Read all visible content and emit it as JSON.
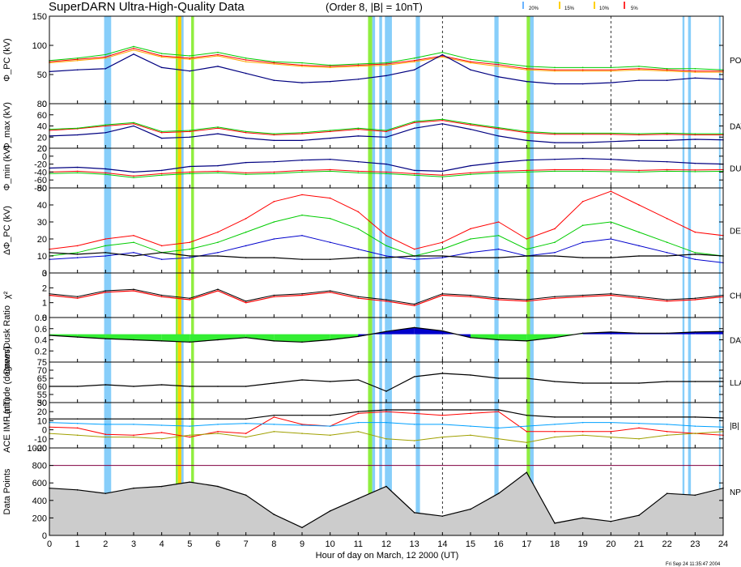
{
  "header": {
    "title": "SuperDARN Ultra-High-Quality Data",
    "subtitle": "(Order 8, |B| = 10nT)",
    "legend": [
      {
        "label": "20%",
        "color": "#6ab4ff"
      },
      {
        "label": "15%",
        "color": "#ffd000"
      },
      {
        "label": "10%",
        "color": "#ffd000"
      },
      {
        "label": "5%",
        "color": "#ff3030"
      }
    ],
    "footer_stamp": "Fri Sep 24 11:35:47 2004"
  },
  "chart_data": {
    "type": "line",
    "xlabel": "Hour of day on March, 12 2000 (UT)",
    "xlim": [
      0,
      24
    ],
    "x_ticks": [
      "0",
      "1",
      "2",
      "3",
      "4",
      "5",
      "6",
      "7",
      "8",
      "9",
      "10",
      "11",
      "12",
      "13",
      "14",
      "15",
      "16",
      "17",
      "18",
      "19",
      "20",
      "21",
      "22",
      "23",
      "24"
    ],
    "dashed_hours": [
      14,
      20
    ],
    "shaded_intervals": [
      {
        "start": 1.95,
        "end": 2.2,
        "color": "#87cefa"
      },
      {
        "start": 4.5,
        "end": 4.58,
        "color": "#90ee40"
      },
      {
        "start": 4.58,
        "end": 4.7,
        "color": "#ffd000"
      },
      {
        "start": 4.7,
        "end": 4.78,
        "color": "#87cefa"
      },
      {
        "start": 5.05,
        "end": 5.15,
        "color": "#90ee40"
      },
      {
        "start": 11.35,
        "end": 11.5,
        "color": "#90ee40"
      },
      {
        "start": 11.5,
        "end": 11.6,
        "color": "#87cefa"
      },
      {
        "start": 11.75,
        "end": 11.85,
        "color": "#87cefa"
      },
      {
        "start": 11.95,
        "end": 12.2,
        "color": "#87cefa"
      },
      {
        "start": 13.05,
        "end": 13.2,
        "color": "#87cefa"
      },
      {
        "start": 15.85,
        "end": 16.0,
        "color": "#87cefa"
      },
      {
        "start": 17.0,
        "end": 17.12,
        "color": "#90ee40"
      },
      {
        "start": 17.12,
        "end": 17.25,
        "color": "#87cefa"
      },
      {
        "start": 22.55,
        "end": 22.62,
        "color": "#87cefa"
      },
      {
        "start": 22.75,
        "end": 22.85,
        "color": "#87cefa"
      },
      {
        "start": 23.85,
        "end": 23.9,
        "color": "#87cefa"
      }
    ],
    "panels": [
      {
        "id": "phi_pc",
        "ylabel": "Φ_PC (kV)",
        "ylim": [
          0,
          150
        ],
        "yticks": [
          "0",
          "50",
          "100",
          "150"
        ],
        "right_label": "PO",
        "series": [
          {
            "color": "#ff0000",
            "values": [
              72,
              76,
              80,
              95,
              82,
              78,
              84,
              75,
              70,
              66,
              64,
              66,
              68,
              74,
              82,
              72,
              67,
              60,
              58,
              58,
              58,
              60,
              58,
              56,
              56
            ]
          },
          {
            "color": "#00cc00",
            "values": [
              74,
              78,
              84,
              98,
              86,
              82,
              88,
              78,
              72,
              70,
              66,
              68,
              70,
              78,
              88,
              76,
              70,
              64,
              62,
              62,
              62,
              64,
              60,
              60,
              58
            ]
          },
          {
            "color": "#ffa500",
            "values": [
              70,
              74,
              78,
              92,
              80,
              76,
              82,
              72,
              68,
              64,
              62,
              64,
              66,
              72,
              80,
              70,
              64,
              58,
              56,
              56,
              56,
              58,
              56,
              54,
              54
            ]
          },
          {
            "color": "#000080",
            "values": [
              55,
              58,
              60,
              85,
              62,
              56,
              64,
              52,
              40,
              36,
              38,
              42,
              48,
              58,
              84,
              58,
              46,
              38,
              34,
              34,
              36,
              40,
              40,
              44,
              42
            ]
          }
        ]
      },
      {
        "id": "phi_max",
        "ylabel": "Φ_max (kV)",
        "ylim": [
          0,
          80
        ],
        "yticks": [
          "0",
          "20",
          "40",
          "60",
          "80"
        ],
        "right_label": "DAY",
        "series": [
          {
            "color": "#ff0000",
            "values": [
              32,
              35,
              40,
              44,
              28,
              30,
              36,
              28,
              24,
              26,
              30,
              34,
              30,
              46,
              50,
              42,
              35,
              28,
              25,
              25,
              25,
              24,
              25,
              24,
              24
            ]
          },
          {
            "color": "#00cc00",
            "values": [
              34,
              36,
              42,
              46,
              30,
              32,
              38,
              30,
              26,
              28,
              32,
              36,
              32,
              48,
              52,
              44,
              37,
              30,
              27,
              27,
              27,
              26,
              27,
              26,
              26
            ]
          },
          {
            "color": "#000080",
            "values": [
              22,
              24,
              28,
              40,
              18,
              20,
              26,
              18,
              14,
              14,
              18,
              22,
              20,
              36,
              44,
              34,
              22,
              14,
              10,
              10,
              12,
              14,
              14,
              16,
              15
            ]
          }
        ]
      },
      {
        "id": "phi_min",
        "ylabel": "Φ_min (kV)",
        "ylim": [
          -80,
          20
        ],
        "yticks": [
          "-80",
          "-60",
          "-40",
          "-20",
          "0",
          "20"
        ],
        "right_label": "DU",
        "series": [
          {
            "color": "#ff0000",
            "values": [
              -40,
              -38,
              -42,
              -50,
              -44,
              -40,
              -38,
              -42,
              -40,
              -36,
              -34,
              -38,
              -40,
              -44,
              -48,
              -42,
              -38,
              -36,
              -34,
              -34,
              -35,
              -36,
              -34,
              -35,
              -34
            ]
          },
          {
            "color": "#00cc00",
            "values": [
              -44,
              -42,
              -46,
              -54,
              -48,
              -44,
              -42,
              -46,
              -44,
              -40,
              -38,
              -42,
              -44,
              -48,
              -52,
              -46,
              -42,
              -40,
              -38,
              -38,
              -39,
              -40,
              -38,
              -39,
              -38
            ]
          },
          {
            "color": "#000080",
            "values": [
              -30,
              -28,
              -32,
              -40,
              -36,
              -26,
              -24,
              -16,
              -14,
              -10,
              -8,
              -14,
              -20,
              -36,
              -38,
              -24,
              -16,
              -10,
              -8,
              -6,
              -8,
              -12,
              -14,
              -18,
              -20
            ]
          }
        ]
      },
      {
        "id": "delta_phi",
        "ylabel": "ΔΦ_PC (kV)",
        "ylim": [
          0,
          50
        ],
        "yticks": [
          "0",
          "10",
          "20",
          "30",
          "40",
          "50"
        ],
        "right_label": "DE",
        "series": [
          {
            "color": "#ff0000",
            "values": [
              14,
              16,
              20,
              22,
              16,
              18,
              24,
              32,
              42,
              46,
              44,
              36,
              22,
              14,
              18,
              26,
              30,
              20,
              26,
              42,
              48,
              40,
              32,
              24,
              22
            ]
          },
          {
            "color": "#00cc00",
            "values": [
              10,
              12,
              16,
              18,
              12,
              14,
              18,
              24,
              30,
              34,
              32,
              26,
              16,
              10,
              14,
              20,
              22,
              14,
              18,
              28,
              30,
              24,
              18,
              12,
              10
            ]
          },
          {
            "color": "#0000cc",
            "values": [
              8,
              9,
              10,
              12,
              8,
              9,
              12,
              16,
              20,
              22,
              18,
              14,
              10,
              8,
              9,
              12,
              14,
              10,
              12,
              18,
              20,
              16,
              12,
              8,
              6
            ]
          },
          {
            "color": "#000000",
            "values": [
              12,
              11,
              12,
              10,
              12,
              10,
              10,
              9,
              9,
              8,
              8,
              9,
              9,
              10,
              10,
              9,
              9,
              10,
              10,
              9,
              9,
              10,
              10,
              11,
              10
            ]
          }
        ]
      },
      {
        "id": "chi",
        "ylabel": "χ²",
        "ylim": [
          0,
          3
        ],
        "yticks": [
          "0",
          "1",
          "2",
          "3"
        ],
        "right_label": "CH",
        "series": [
          {
            "color": "#000000",
            "values": [
              1.6,
              1.4,
              1.8,
              1.9,
              1.5,
              1.3,
              1.9,
              1.1,
              1.5,
              1.6,
              1.8,
              1.4,
              1.2,
              0.9,
              1.6,
              1.5,
              1.3,
              1.2,
              1.4,
              1.5,
              1.6,
              1.4,
              1.2,
              1.3,
              1.5
            ]
          },
          {
            "color": "#ff0000",
            "values": [
              1.5,
              1.3,
              1.7,
              1.8,
              1.4,
              1.2,
              1.8,
              1.0,
              1.4,
              1.5,
              1.7,
              1.3,
              1.1,
              0.8,
              1.5,
              1.4,
              1.2,
              1.1,
              1.3,
              1.4,
              1.5,
              1.3,
              1.1,
              1.2,
              1.4
            ]
          }
        ]
      },
      {
        "id": "ratio",
        "ylabel": "Dawn/Dusk Ratio",
        "ylim": [
          0,
          0.8
        ],
        "yticks": [
          "0.2",
          "0.4",
          "0.6",
          "0.8"
        ],
        "right_label": "DAY",
        "baseline": 0.5,
        "series": [
          {
            "color": "#000000",
            "values": [
              0.48,
              0.45,
              0.42,
              0.4,
              0.38,
              0.36,
              0.4,
              0.44,
              0.38,
              0.36,
              0.4,
              0.46,
              0.55,
              0.62,
              0.56,
              0.44,
              0.4,
              0.38,
              0.44,
              0.52,
              0.54,
              0.52,
              0.52,
              0.54,
              0.55
            ]
          }
        ]
      },
      {
        "id": "lat",
        "ylabel": "Latitude (degrees)",
        "ylim": [
          50,
          75
        ],
        "yticks": [
          "50",
          "55",
          "60",
          "65",
          "70",
          "75"
        ],
        "right_label": "LLA",
        "series": [
          {
            "color": "#000000",
            "values": [
              60,
              60,
              61,
              60,
              61,
              60,
              60,
              60,
              62,
              64,
              63,
              64,
              57,
              66,
              68,
              67,
              65,
              65,
              63,
              62,
              62,
              62,
              63,
              63,
              63
            ]
          }
        ]
      },
      {
        "id": "imf",
        "ylabel": "ACE IMF (nT)",
        "ylim": [
          -20,
          30
        ],
        "yticks": [
          "-20",
          "-10",
          "0",
          "10",
          "20",
          "30"
        ],
        "right_label": "|B|",
        "series": [
          {
            "color": "#ff0000",
            "values": [
              3,
              2,
              -5,
              -6,
              -3,
              -8,
              -2,
              -4,
              14,
              6,
              4,
              18,
              20,
              18,
              16,
              18,
              20,
              -2,
              -2,
              -2,
              -2,
              2,
              -2,
              -4,
              -6
            ]
          },
          {
            "color": "#00a0ff",
            "values": [
              8,
              7,
              6,
              6,
              5,
              4,
              6,
              7,
              6,
              5,
              4,
              8,
              8,
              6,
              6,
              4,
              2,
              4,
              6,
              8,
              8,
              7,
              6,
              4,
              3
            ]
          },
          {
            "color": "#a0a000",
            "values": [
              -4,
              -6,
              -8,
              -8,
              -10,
              -6,
              -4,
              -8,
              -2,
              -4,
              -6,
              -2,
              -10,
              -12,
              -8,
              -6,
              -10,
              -14,
              -8,
              -6,
              -8,
              -10,
              -6,
              -4,
              -2
            ]
          },
          {
            "color": "#000000",
            "values": [
              12,
              12,
              12,
              12,
              12,
              12,
              12,
              12,
              16,
              16,
              16,
              20,
              22,
              22,
              22,
              22,
              22,
              16,
              14,
              14,
              14,
              14,
              14,
              14,
              13
            ]
          }
        ]
      },
      {
        "id": "npts",
        "ylabel": "Data Points",
        "ylim": [
          0,
          1000
        ],
        "yticks": [
          "0",
          "200",
          "400",
          "600",
          "800",
          "1000"
        ],
        "right_label": "NP",
        "reference_value": 800,
        "fill": "#cccccc",
        "series": [
          {
            "color": "#000000",
            "values": [
              540,
              520,
              480,
              540,
              560,
              610,
              560,
              460,
              240,
              90,
              280,
              420,
              560,
              260,
              220,
              300,
              480,
              720,
              140,
              200,
              160,
              230,
              480,
              460,
              540
            ]
          }
        ]
      }
    ]
  }
}
